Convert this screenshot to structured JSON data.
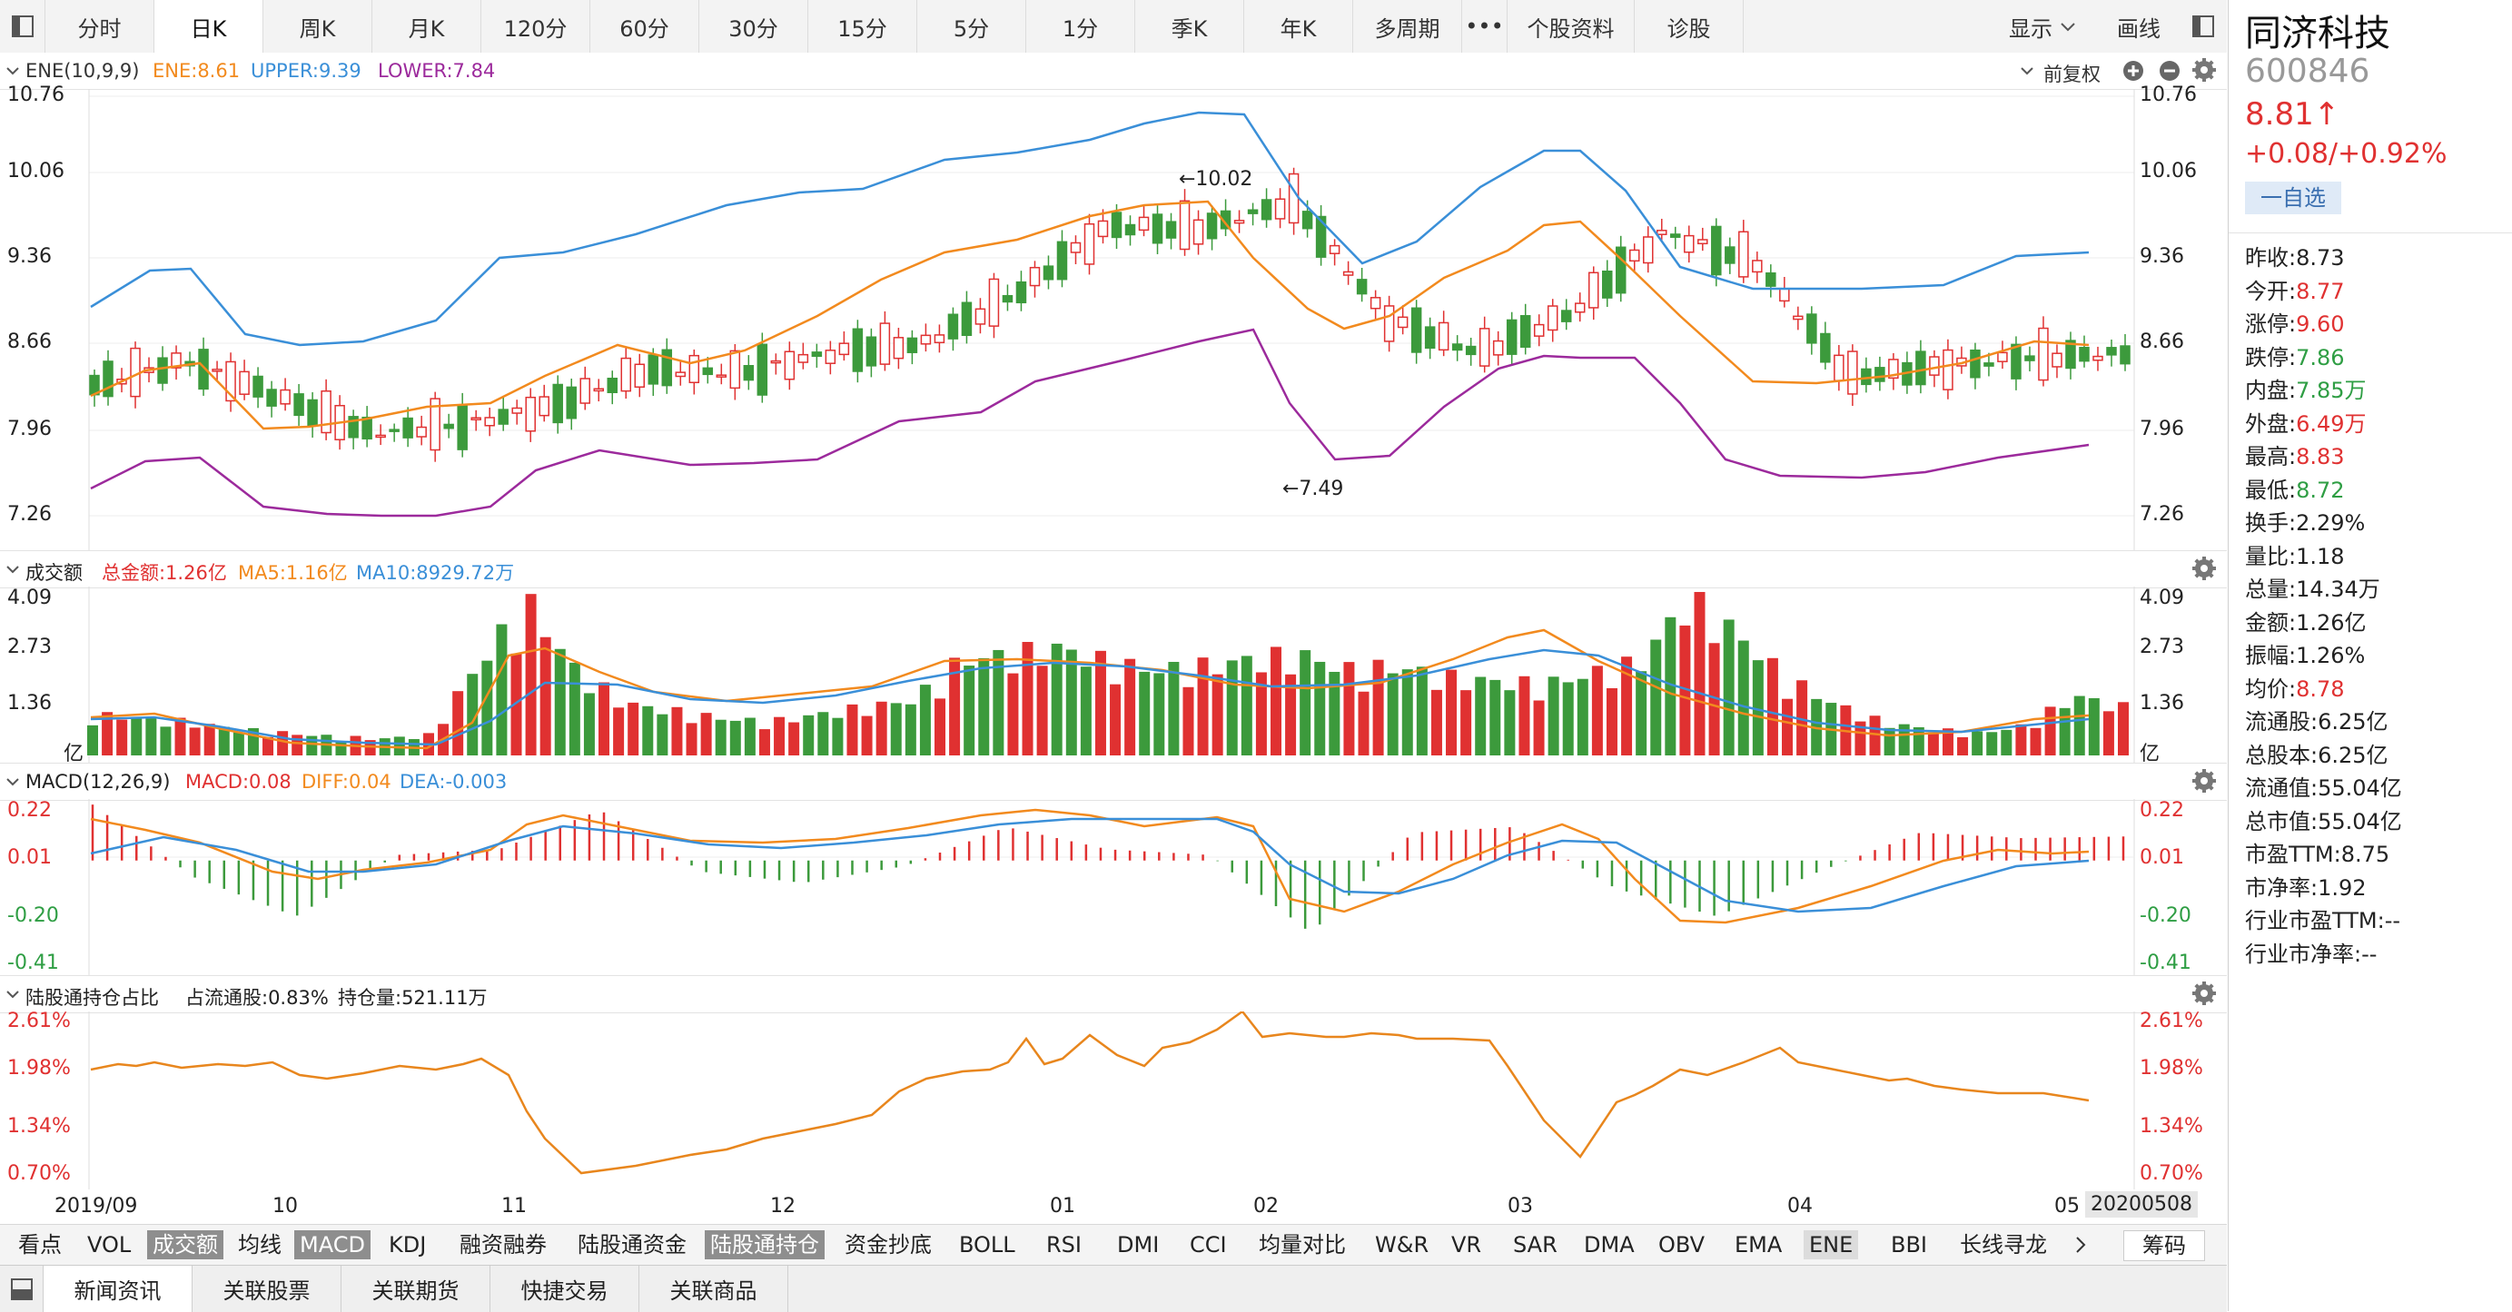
{
  "toolbar": {
    "periods": [
      "分时",
      "日K",
      "周K",
      "月K",
      "120分",
      "60分",
      "30分",
      "15分",
      "5分",
      "1分",
      "季K",
      "年K",
      "多周期",
      "•••",
      "个股资料",
      "诊股"
    ],
    "active": "日K",
    "display": "显示",
    "draw": "画线"
  },
  "stock": {
    "name": "同济科技",
    "code": "600846",
    "price": "8.81↑",
    "change": "+0.08/+0.92%",
    "watch": "一自选"
  },
  "stats": [
    {
      "label": "昨收:",
      "value": "8.73",
      "color": "#222"
    },
    {
      "label": "今开:",
      "value": "8.77",
      "color": "#e03131"
    },
    {
      "label": "涨停:",
      "value": "9.60",
      "color": "#e03131"
    },
    {
      "label": "跌停:",
      "value": "7.86",
      "color": "#2f9e44"
    },
    {
      "label": "内盘:",
      "value": "7.85万",
      "color": "#2f9e44"
    },
    {
      "label": "外盘:",
      "value": "6.49万",
      "color": "#e03131"
    },
    {
      "label": "最高:",
      "value": "8.83",
      "color": "#e03131"
    },
    {
      "label": "最低:",
      "value": "8.72",
      "color": "#2f9e44"
    },
    {
      "label": "换手:",
      "value": "2.29%",
      "color": "#222"
    },
    {
      "label": "量比:",
      "value": "1.18",
      "color": "#222"
    },
    {
      "label": "总量:",
      "value": "14.34万",
      "color": "#222"
    },
    {
      "label": "金额:",
      "value": "1.26亿",
      "color": "#222"
    },
    {
      "label": "振幅:",
      "value": "1.26%",
      "color": "#222"
    },
    {
      "label": "均价:",
      "value": "8.78",
      "color": "#e03131"
    },
    {
      "label": "流通股:",
      "value": "6.25亿",
      "color": "#222"
    },
    {
      "label": "总股本:",
      "value": "6.25亿",
      "color": "#222"
    },
    {
      "label": "流通值:",
      "value": "55.04亿",
      "color": "#222"
    },
    {
      "label": "总市值:",
      "value": "55.04亿",
      "color": "#222"
    },
    {
      "label": "市盈TTM:",
      "value": "8.75",
      "color": "#222"
    },
    {
      "label": "市净率:",
      "value": "1.92",
      "color": "#222"
    },
    {
      "label": "行业市盈TTM:",
      "value": "--",
      "color": "#222"
    },
    {
      "label": "行业市净率:",
      "value": "--",
      "color": "#222"
    }
  ],
  "ene": {
    "title": "ENE(10,9,9)",
    "ene_label": "ENE:8.61",
    "upper_label": "UPPER:9.39",
    "lower_label": "LOWER:7.84",
    "adjust": "前复权",
    "ticks": [
      "10.76",
      "10.06",
      "9.36",
      "8.66",
      "7.96",
      "7.26"
    ],
    "high_note": "←10.02",
    "low_note": "←7.49"
  },
  "amount": {
    "title": "成交额",
    "total": "总金额:1.26亿",
    "ma5": "MA5:1.16亿",
    "ma10": "MA10:8929.72万",
    "ticks": [
      "4.09",
      "2.73",
      "1.36",
      "亿"
    ]
  },
  "macd": {
    "title": "MACD(12,26,9)",
    "macd": "MACD:0.08",
    "diff": "DIFF:0.04",
    "dea": "DEA:-0.003",
    "ticks": [
      "0.22",
      "0.01",
      "-0.20",
      "-0.41"
    ]
  },
  "hk": {
    "title": "陆股通持仓占比",
    "ratio": "占流通股:0.83%",
    "holding": "持仓量:521.11万",
    "ticks": [
      "2.61%",
      "1.98%",
      "1.34%",
      "0.70%"
    ]
  },
  "xaxis": {
    "labels": [
      "2019/09",
      "10",
      "11",
      "12",
      "01",
      "02",
      "03",
      "04",
      "05"
    ],
    "cursor_date": "20200508"
  },
  "indicators": [
    "看点",
    "VOL",
    "成交额",
    "均线",
    "MACD",
    "KDJ",
    "融资融券",
    "陆股通资金",
    "陆股通持仓",
    "资金抄底",
    "BOLL",
    "RSI",
    "DMI",
    "CCI",
    "均量对比",
    "W&R",
    "VR",
    "SAR",
    "DMA",
    "OBV",
    "EMA",
    "ENE",
    "BBI",
    "长线寻龙"
  ],
  "chips": "筹码",
  "tabs": [
    "新闻资讯",
    "关联股票",
    "关联期货",
    "快捷交易",
    "关联商品"
  ],
  "colors": {
    "up": "#e03131",
    "down": "#3c9a3c",
    "ene": "#f28a1e",
    "upper": "#3a8fd8",
    "lower": "#9c2a9c"
  },
  "chart_data": [
    {
      "type": "candlestick",
      "title": "ENE(10,9,9)",
      "ylim": [
        7.26,
        10.76
      ],
      "x_range": [
        "2019/09",
        "2020/05/08"
      ],
      "series": [
        {
          "name": "UPPER",
          "values": [
            9.05,
            9.25,
            9.2,
            8.85,
            8.78,
            8.85,
            8.92,
            9.3,
            9.48,
            9.32,
            9.75,
            10.35,
            10.25,
            10.62,
            10.12,
            9.48,
            9.92,
            10.28,
            10.05,
            9.28,
            9.22,
            9.32,
            9.4
          ]
        },
        {
          "name": "ENE",
          "values": [
            8.35,
            8.55,
            8.25,
            7.95,
            8.02,
            8.18,
            8.48,
            8.45,
            8.62,
            8.7,
            9.12,
            9.68,
            9.65,
            9.88,
            8.9,
            8.62,
            8.95,
            9.62,
            9.38,
            8.42,
            8.5,
            8.58,
            8.61
          ]
        },
        {
          "name": "LOWER",
          "values": [
            7.6,
            7.85,
            7.5,
            7.25,
            7.28,
            7.45,
            7.75,
            7.62,
            7.72,
            7.88,
            8.3,
            8.68,
            8.75,
            9.0,
            8.12,
            7.72,
            8.2,
            8.75,
            8.4,
            7.58,
            7.6,
            7.74,
            7.84
          ]
        }
      ],
      "annotations": [
        "10.02",
        "7.49"
      ]
    },
    {
      "type": "bar",
      "title": "成交额",
      "ylim": [
        0,
        4.09
      ],
      "series": [
        {
          "name": "成交额",
          "values": [
            1.1,
            1.0,
            0.9,
            0.7,
            0.6,
            0.5,
            0.45,
            0.55,
            2.5,
            4.1,
            2.3,
            1.4,
            1.2,
            1.0,
            0.9,
            1.1,
            1.3,
            1.5,
            2.6,
            2.7,
            2.9,
            2.5,
            2.3,
            2.4,
            2.6,
            2.7,
            2.3,
            2.4,
            2.1,
            2.0,
            1.9,
            2.2,
            2.5,
            4.2,
            3.3,
            2.1,
            1.4,
            0.9,
            0.7,
            0.6,
            0.8,
            1.6,
            1.3
          ]
        }
      ]
    },
    {
      "type": "line",
      "title": "MACD(12,26,9)",
      "ylim": [
        -0.41,
        0.22
      ],
      "series": [
        {
          "name": "DIFF",
          "values": [
            0.12,
            0.05,
            -0.12,
            -0.05,
            0.02,
            0.21,
            0.15,
            0.03,
            0.05,
            0.18,
            0.2,
            0.18,
            -0.18,
            -0.05,
            0.08,
            0.05,
            -0.2,
            -0.22,
            -0.1,
            0.0,
            0.04
          ]
        },
        {
          "name": "DEA",
          "values": [
            0.02,
            0.08,
            -0.02,
            -0.06,
            0.0,
            0.12,
            0.17,
            0.07,
            0.06,
            0.12,
            0.18,
            0.17,
            -0.05,
            -0.1,
            0.02,
            0.1,
            -0.1,
            -0.2,
            -0.15,
            -0.04,
            -0.003
          ]
        }
      ]
    },
    {
      "type": "line",
      "title": "陆股通持仓占比",
      "ylim": [
        0.7,
        2.61
      ],
      "series": [
        {
          "name": "陆股通持仓占比",
          "values": [
            1.95,
            1.98,
            1.92,
            2.02,
            1.7,
            0.75,
            0.8,
            1.0,
            1.15,
            1.2,
            1.55,
            1.7,
            2.61,
            2.3,
            1.3,
            1.45,
            1.55,
            0.85,
            2.05,
            1.3,
            0.95,
            0.72,
            0.7,
            0.83
          ]
        }
      ]
    }
  ]
}
